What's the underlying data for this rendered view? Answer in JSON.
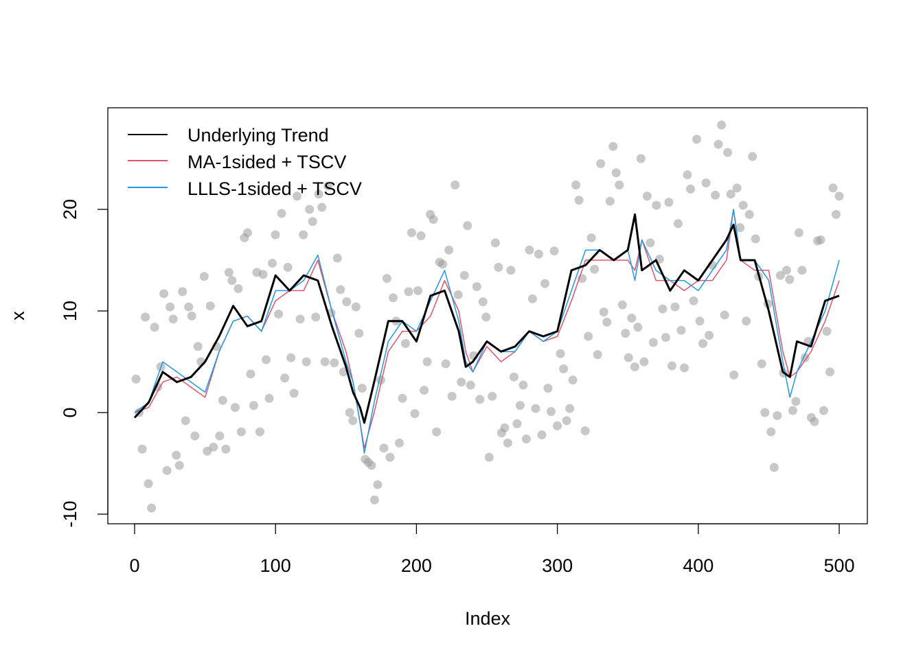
{
  "chart_data": {
    "type": "line",
    "title": "",
    "xlabel": "Index",
    "ylabel": "x",
    "xlim": [
      0,
      500
    ],
    "ylim": [
      -10,
      28
    ],
    "xticks": [
      "0",
      "100",
      "200",
      "300",
      "400",
      "500"
    ],
    "yticks": [
      "-10",
      "0",
      "10",
      "20"
    ],
    "grid": false,
    "legend_position": "top-left",
    "colors": {
      "trend": "#000000",
      "ma": "#DF536B",
      "llls": "#2297E6",
      "points": "#9a9a9a"
    },
    "legend": [
      "Underlying Trend",
      "MA-1sided + TSCV",
      "LLLS-1sided + TSCV"
    ],
    "x": [
      0,
      10,
      20,
      30,
      40,
      50,
      60,
      70,
      80,
      90,
      100,
      110,
      120,
      130,
      140,
      150,
      155,
      160,
      163,
      170,
      180,
      190,
      200,
      210,
      220,
      230,
      235,
      240,
      250,
      260,
      270,
      280,
      290,
      300,
      310,
      320,
      330,
      340,
      350,
      355,
      360,
      370,
      380,
      390,
      400,
      410,
      420,
      425,
      430,
      440,
      450,
      460,
      465,
      470,
      480,
      490,
      500
    ],
    "series": [
      {
        "name": "Underlying Trend",
        "values": [
          -0.5,
          1,
          4,
          3,
          3.5,
          5,
          7.5,
          10.5,
          8.5,
          9,
          13.5,
          12,
          13.5,
          13,
          8.5,
          4.5,
          2,
          0.5,
          -1,
          3,
          9,
          9,
          7,
          11.5,
          12,
          8,
          4.5,
          5,
          7,
          6,
          6.5,
          8,
          7.5,
          8,
          14,
          14.5,
          16,
          15,
          16,
          19.5,
          14,
          15,
          12,
          14,
          13,
          15,
          17,
          18.5,
          15,
          15,
          10,
          4,
          3.5,
          7,
          6.5,
          11,
          11.5
        ]
      },
      {
        "name": "MA-1sided + TSCV",
        "values": [
          0,
          0.5,
          3,
          3.5,
          2.5,
          1.5,
          6,
          9,
          9.5,
          8,
          11,
          12,
          12,
          15,
          10,
          6,
          3,
          -1,
          -3.5,
          0,
          6,
          8,
          8,
          9.5,
          13,
          10,
          6,
          4,
          6.5,
          5,
          6,
          8,
          7,
          7.5,
          11,
          15,
          15,
          15,
          15,
          14,
          17,
          13,
          13,
          12,
          13,
          13,
          15,
          20,
          15,
          14,
          14,
          6,
          3.5,
          4,
          6,
          9,
          13
        ]
      },
      {
        "name": "LLLS-1sided + TSCV",
        "values": [
          0,
          1,
          5,
          4,
          3,
          2,
          6,
          9,
          9.5,
          8,
          12,
          12,
          13,
          15.5,
          10,
          5,
          3,
          -1,
          -4,
          1,
          7,
          9,
          8,
          11,
          14,
          9,
          5,
          4,
          7,
          6,
          6,
          8,
          7,
          8,
          12,
          16,
          16,
          15,
          16,
          13,
          17,
          14,
          13,
          13,
          12,
          14,
          16,
          20,
          15,
          15,
          13,
          5,
          1.5,
          4,
          7,
          10,
          15
        ]
      }
    ],
    "observations": {
      "x_start": 1,
      "x_end": 500,
      "y": [
        3.3,
        0,
        -3.6,
        9.4,
        -7,
        -9.4,
        8.4,
        2.5,
        4.5,
        11.7,
        -5.7,
        10.4,
        9.2,
        -4.2,
        -5.2,
        11.9,
        -0.8,
        10.4,
        9.5,
        -2.3,
        6.5,
        5,
        13.4,
        -3.8,
        10.5,
        -3.4,
        6.5,
        -2.3,
        1.2,
        -3.6,
        13.8,
        13,
        0.5,
        12.2,
        -1.9,
        17.2,
        17.7,
        3.8,
        0.7,
        13.8,
        -1.9,
        13.6,
        5.2,
        1.4,
        14.7,
        17.5,
        9.7,
        19.6,
        3.4,
        14.3,
        5.4,
        1.9,
        21.3,
        9.2,
        17.5,
        5,
        20,
        18.8,
        9.4,
        21.5,
        20.2,
        5,
        22.3,
        9.8,
        4.9,
        15.2,
        12.1,
        4,
        10.9,
        0,
        -0.8,
        10.4,
        7.8,
        2.4,
        -4.6,
        -4.9,
        -5.2,
        -8.6,
        -7.1,
        3.2,
        -3.5,
        13.2,
        -4.4,
        11.3,
        9,
        -3,
        1.4,
        6.8,
        11.9,
        17.7,
        -0.1,
        12,
        17.4,
        2.2,
        5,
        19.5,
        19,
        -1.9,
        14.8,
        14.6,
        4.8,
        16,
        1.6,
        22.4,
        11.6,
        3,
        13.5,
        18.4,
        2.7,
        5.6,
        12.4,
        1.3,
        10.9,
        9.4,
        -4.4,
        1.6,
        16.7,
        14.3,
        -2,
        -1.5,
        -3,
        14,
        3.5,
        -1.1,
        0.7,
        2.7,
        -2.6,
        16,
        11.2,
        0.4,
        15.6,
        -2.2,
        12.7,
        2.4,
        0.1,
        15.9,
        -1.3,
        5.8,
        4.3,
        -0.8,
        0.4,
        3.2,
        22.4,
        20.9,
        13.2,
        -1.8,
        7.5,
        17.2,
        14.1,
        5.7,
        24.5,
        9.9,
        8.9,
        20.8,
        26.2,
        23.6,
        22.4,
        10.6,
        7.8,
        5.4,
        9.3,
        4.5,
        8.4,
        25,
        5,
        21.3,
        16.7,
        6.9,
        20.4,
        15.1,
        10.2,
        7.4,
        20.7,
        4.6,
        10.4,
        18.6,
        8.1,
        4.4,
        23.4,
        22,
        11,
        26.9,
        9,
        6.8,
        22.6,
        7.6,
        14.5,
        21.4,
        26.4,
        28.3,
        9.6,
        25.6,
        21.5,
        3.7,
        22.1,
        18.2,
        20.4,
        9,
        19.5,
        25.2,
        17.1,
        13.4,
        4.8,
        0,
        10.7,
        -1.9,
        -5.4,
        -0.3,
        13.5,
        3.9,
        14,
        13.1,
        0.2,
        1.1,
        17.7,
        14,
        5.4,
        7,
        -0.5,
        -0.9,
        16.9,
        17,
        0.2,
        8,
        4,
        22.1,
        19.5,
        21.3
      ]
    }
  }
}
